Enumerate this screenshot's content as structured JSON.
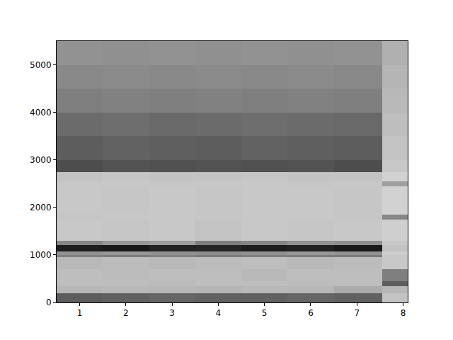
{
  "chart_data": {
    "type": "heatmap",
    "color": "gray",
    "grid": false,
    "x": [
      0.5,
      1.5,
      2.5,
      3.5,
      4.5,
      5.5,
      6.5,
      7.55,
      8.1
    ],
    "y": [
      0,
      200,
      350,
      450,
      700,
      950,
      1000,
      1080,
      1200,
      1300,
      1750,
      1850,
      2450,
      2550,
      2750,
      3000,
      3500,
      4000,
      4500,
      5000,
      5500
    ],
    "z": [
      [
        62,
        60,
        58,
        60,
        60,
        58,
        60,
        20
      ],
      [
        25,
        24,
        25,
        26,
        24,
        25,
        30,
        25
      ],
      [
        22,
        22,
        23,
        22,
        22,
        23,
        22,
        62
      ],
      [
        22,
        23,
        22,
        22,
        24,
        22,
        22,
        48
      ],
      [
        24,
        23,
        24,
        23,
        22,
        24,
        23,
        18
      ],
      [
        48,
        50,
        47,
        50,
        48,
        49,
        50,
        18
      ],
      [
        40,
        38,
        40,
        42,
        40,
        38,
        40,
        16
      ],
      [
        88,
        90,
        86,
        85,
        88,
        87,
        90,
        20
      ],
      [
        45,
        38,
        35,
        48,
        45,
        40,
        42,
        18
      ],
      [
        18,
        19,
        18,
        20,
        18,
        19,
        18,
        15
      ],
      [
        19,
        18,
        18,
        19,
        18,
        18,
        19,
        45
      ],
      [
        18,
        19,
        18,
        19,
        18,
        18,
        19,
        14
      ],
      [
        18,
        18,
        19,
        18,
        18,
        19,
        18,
        35
      ],
      [
        20,
        19,
        20,
        20,
        19,
        20,
        20,
        14
      ],
      [
        68,
        66,
        67,
        66,
        67,
        66,
        68,
        18
      ],
      [
        62,
        60,
        61,
        62,
        60,
        61,
        62,
        20
      ],
      [
        56,
        55,
        57,
        56,
        55,
        56,
        57,
        22
      ],
      [
        48,
        47,
        48,
        47,
        48,
        47,
        48,
        24
      ],
      [
        44,
        43,
        44,
        43,
        44,
        43,
        44,
        26
      ],
      [
        40,
        41,
        40,
        41,
        40,
        41,
        40,
        28
      ]
    ],
    "zlim": [
      0,
      100
    ],
    "xlim": [
      0.5,
      8.1
    ],
    "xticks": [
      1,
      2,
      3,
      4,
      5,
      6,
      7,
      8
    ],
    "ylim": [
      0,
      5500
    ],
    "yticks": [
      0,
      1000,
      2000,
      3000,
      4000,
      5000
    ]
  }
}
